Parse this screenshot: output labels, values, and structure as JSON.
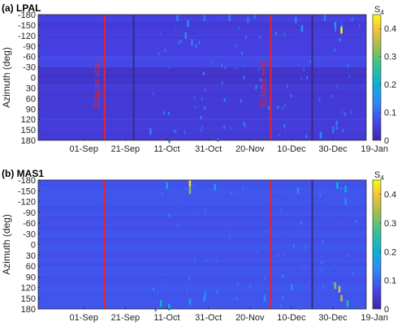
{
  "colors": {
    "eclipse_line": "#e8242b",
    "dark_line": "#3a2a7a",
    "colormap": [
      "#3e26a8",
      "#4743e8",
      "#2e87f7",
      "#0cb1d5",
      "#38c291",
      "#a3bd4e",
      "#f5c13b",
      "#f9fb15"
    ]
  },
  "chart_data": [
    {
      "type": "heatmap",
      "title": "(a) LPAL",
      "ylabel": "Azimuth (deg)",
      "yticks": [
        "-180",
        "-150",
        "-120",
        "-90",
        "-60",
        "-30",
        "0",
        "30",
        "60",
        "90",
        "120",
        "150",
        "180"
      ],
      "ylim": [
        -180,
        180
      ],
      "xticks": [
        "01-Sep",
        "21-Sep",
        "11-Oct",
        "31-Oct",
        "20-Nov",
        "10-Dec",
        "30-Dec",
        "19-Jan"
      ],
      "colorbar": {
        "label": "S",
        "label_sub": "4",
        "ticks": [
          "0",
          "0.1",
          "0.2",
          "0.3",
          "0.4"
        ],
        "range": [
          0,
          0.45
        ]
      },
      "event_lines": [
        {
          "label": "Eclipse start",
          "x_day": 32,
          "color": "eclipse_line"
        },
        {
          "label": "Eclipse end",
          "x_day": 112,
          "color": "eclipse_line"
        }
      ],
      "dark_lines": [
        {
          "x_day": 46
        },
        {
          "x_day": 132
        }
      ],
      "background_by_azimuth": [
        {
          "az_from": -180,
          "az_to": -165,
          "s4": 0.06
        },
        {
          "az_from": -165,
          "az_to": -120,
          "s4": 0.05
        },
        {
          "az_from": -120,
          "az_to": -60,
          "s4": 0.055
        },
        {
          "az_from": -60,
          "az_to": -30,
          "s4": 0.07
        },
        {
          "az_from": -30,
          "az_to": 20,
          "s4": 0.035
        },
        {
          "az_from": 20,
          "az_to": 120,
          "s4": 0.045
        },
        {
          "az_from": 120,
          "az_to": 180,
          "s4": 0.05
        }
      ],
      "hotspots": [
        {
          "day": 67,
          "az": -170,
          "s4": 0.12
        },
        {
          "day": 72,
          "az": -155,
          "s4": 0.14
        },
        {
          "day": 71,
          "az": -120,
          "s4": 0.13
        },
        {
          "day": 74,
          "az": -100,
          "s4": 0.12
        },
        {
          "day": 80,
          "az": -170,
          "s4": 0.11
        },
        {
          "day": 92,
          "az": -170,
          "s4": 0.12
        },
        {
          "day": 101,
          "az": -165,
          "s4": 0.11
        },
        {
          "day": 124,
          "az": -165,
          "s4": 0.12
        },
        {
          "day": 127,
          "az": -140,
          "s4": 0.15
        },
        {
          "day": 138,
          "az": -170,
          "s4": 0.12
        },
        {
          "day": 146,
          "az": -140,
          "s4": 0.2
        },
        {
          "day": 146,
          "az": -135,
          "s4": 0.43
        },
        {
          "day": 143,
          "az": -150,
          "s4": 0.15
        },
        {
          "day": 136,
          "az": 165,
          "s4": 0.13
        },
        {
          "day": 142,
          "az": 150,
          "s4": 0.11
        },
        {
          "day": 54,
          "az": 155,
          "s4": 0.12
        }
      ]
    },
    {
      "type": "heatmap",
      "title": "(b) MAS1",
      "ylabel": "Azimuth (deg)",
      "yticks": [
        "-180",
        "-150",
        "-120",
        "-90",
        "-60",
        "-30",
        "0",
        "30",
        "60",
        "90",
        "120",
        "150",
        "180"
      ],
      "ylim": [
        -180,
        180
      ],
      "xticks": [
        "01-Sep",
        "21-Sep",
        "11-Oct",
        "31-Oct",
        "20-Nov",
        "10-Dec",
        "30-Dec",
        "19-Jan"
      ],
      "colorbar": {
        "label": "S",
        "label_sub": "4",
        "ticks": [
          "0",
          "0.1",
          "0.2",
          "0.3",
          "0.4"
        ],
        "range": [
          0,
          0.45
        ]
      },
      "event_lines": [
        {
          "label": "",
          "x_day": 32,
          "color": "eclipse_line"
        },
        {
          "label": "",
          "x_day": 112,
          "color": "eclipse_line"
        }
      ],
      "dark_lines": [
        {
          "x_day": 132
        }
      ],
      "background_by_azimuth": [
        {
          "az_from": -180,
          "az_to": 180,
          "s4": 0.08
        }
      ],
      "hotspots": [
        {
          "day": 73,
          "az": -170,
          "s4": 0.42
        },
        {
          "day": 73,
          "az": -150,
          "s4": 0.3
        },
        {
          "day": 62,
          "az": -165,
          "s4": 0.18
        },
        {
          "day": 85,
          "az": -160,
          "s4": 0.16
        },
        {
          "day": 144,
          "az": -165,
          "s4": 0.2
        },
        {
          "day": 148,
          "az": -155,
          "s4": 0.18
        },
        {
          "day": 148,
          "az": -120,
          "s4": 0.14
        },
        {
          "day": 125,
          "az": -150,
          "s4": 0.14
        },
        {
          "day": 143,
          "az": 115,
          "s4": 0.3
        },
        {
          "day": 145,
          "az": 125,
          "s4": 0.36
        },
        {
          "day": 146,
          "az": 150,
          "s4": 0.34
        },
        {
          "day": 149,
          "az": 165,
          "s4": 0.22
        },
        {
          "day": 59,
          "az": 165,
          "s4": 0.2
        },
        {
          "day": 63,
          "az": 175,
          "s4": 0.2
        },
        {
          "day": 73,
          "az": 160,
          "s4": 0.16
        },
        {
          "day": 80,
          "az": 150,
          "s4": 0.14
        },
        {
          "day": 109,
          "az": 150,
          "s4": 0.14
        },
        {
          "day": 122,
          "az": 120,
          "s4": 0.13
        }
      ]
    }
  ]
}
